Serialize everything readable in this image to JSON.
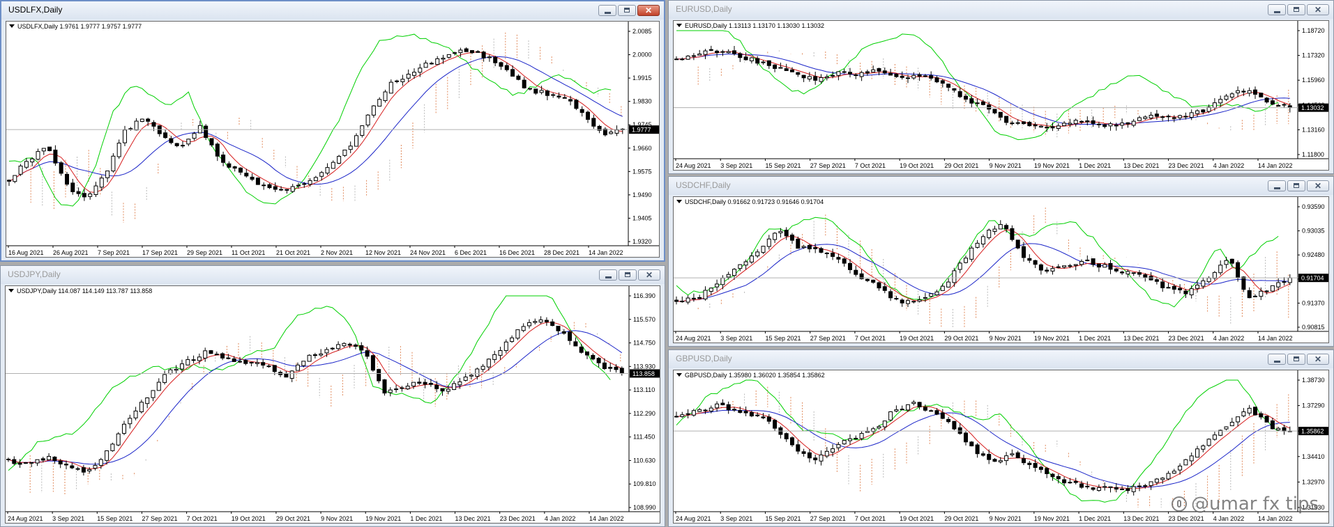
{
  "colors": {
    "tenkan": "#d61e1e",
    "kijun": "#1a24c8",
    "chikou": "#00d000",
    "cloud": "#e0895a",
    "cloud_alt": "#b8b8b8",
    "price_label_bg": "#000000",
    "price_label_text": "#ffffff"
  },
  "watermark": {
    "icon": "tiktok-icon",
    "text": "@umar fx tips"
  },
  "windows": [
    {
      "id": "usdlfx",
      "title": "USDLFX,Daily",
      "active": true,
      "chart_label": "USDLFX,Daily  1.9761 1.9777 1.9757 1.9777",
      "price_label": "1.9777",
      "price_levels": [
        "2.0085",
        "2.0000",
        "1.9915",
        "1.9830",
        "1.9745",
        "1.9660",
        "1.9575",
        "1.9490",
        "1.9405",
        "1.9320"
      ],
      "date_labels": [
        "16 Aug 2021",
        "26 Aug 2021",
        "7 Sep 2021",
        "17 Sep 2021",
        "29 Sep 2021",
        "11 Oct 2021",
        "21 Oct 2021",
        "2 Nov 2021",
        "12 Nov 2021",
        "24 Nov 2021",
        "6 Dec 2021",
        "16 Dec 2021",
        "28 Dec 2021",
        "14 Jan 2022"
      ]
    },
    {
      "id": "usdjpy",
      "title": "USDJPY,Daily",
      "active": false,
      "chart_label": "USDJPY,Daily  114.087 114.149 113.787 113.858",
      "price_label": "113.858",
      "price_levels": [
        "116.390",
        "115.570",
        "114.750",
        "113.930",
        "113.110",
        "112.290",
        "111.450",
        "110.630",
        "109.810",
        "108.990"
      ],
      "date_labels": [
        "24 Aug 2021",
        "3 Sep 2021",
        "15 Sep 2021",
        "27 Sep 2021",
        "7 Oct 2021",
        "19 Oct 2021",
        "29 Oct 2021",
        "9 Nov 2021",
        "19 Nov 2021",
        "1 Dec 2021",
        "13 Dec 2021",
        "23 Dec 2021",
        "4 Jan 2022",
        "14 Jan 2022"
      ]
    },
    {
      "id": "eurusd",
      "title": "EURUSD,Daily",
      "active": false,
      "chart_label": "EURUSD,Daily  1.13113 1.13170 1.13030 1.13032",
      "price_label": "1.13032",
      "price_levels": [
        "1.18720",
        "1.17320",
        "1.15960",
        "1.14560",
        "1.13160",
        "1.11800"
      ],
      "date_labels": [
        "24 Aug 2021",
        "3 Sep 2021",
        "15 Sep 2021",
        "27 Sep 2021",
        "7 Oct 2021",
        "19 Oct 2021",
        "29 Oct 2021",
        "9 Nov 2021",
        "19 Nov 2021",
        "1 Dec 2021",
        "13 Dec 2021",
        "23 Dec 2021",
        "4 Jan 2022",
        "14 Jan 2022"
      ]
    },
    {
      "id": "usdchf",
      "title": "USDCHF,Daily",
      "active": false,
      "chart_label": "USDCHF,Daily  0.91662 0.91723 0.91646 0.91704",
      "price_label": "0.91704",
      "price_levels": [
        "0.93590",
        "0.93035",
        "0.92480",
        "0.91925",
        "0.91370",
        "0.90815"
      ],
      "date_labels": [
        "24 Aug 2021",
        "3 Sep 2021",
        "15 Sep 2021",
        "27 Sep 2021",
        "7 Oct 2021",
        "19 Oct 2021",
        "29 Oct 2021",
        "9 Nov 2021",
        "19 Nov 2021",
        "1 Dec 2021",
        "13 Dec 2021",
        "23 Dec 2021",
        "4 Jan 2022",
        "14 Jan 2022"
      ]
    },
    {
      "id": "gbpusd",
      "title": "GBPUSD,Daily",
      "active": false,
      "chart_label": "GBPUSD,Daily  1.35980 1.36020 1.35854 1.35862",
      "price_label": "1.35862",
      "price_levels": [
        "1.38730",
        "1.37290",
        "1.35850",
        "1.34410",
        "1.32970",
        "1.31530"
      ],
      "date_labels": [
        "24 Aug 2021",
        "3 Sep 2021",
        "15 Sep 2021",
        "27 Sep 2021",
        "7 Oct 2021",
        "19 Oct 2021",
        "29 Oct 2021",
        "9 Nov 2021",
        "19 Nov 2021",
        "1 Dec 2021",
        "13 Dec 2021",
        "23 Dec 2021",
        "4 Jan 2022",
        "14 Jan 2022"
      ]
    }
  ]
}
